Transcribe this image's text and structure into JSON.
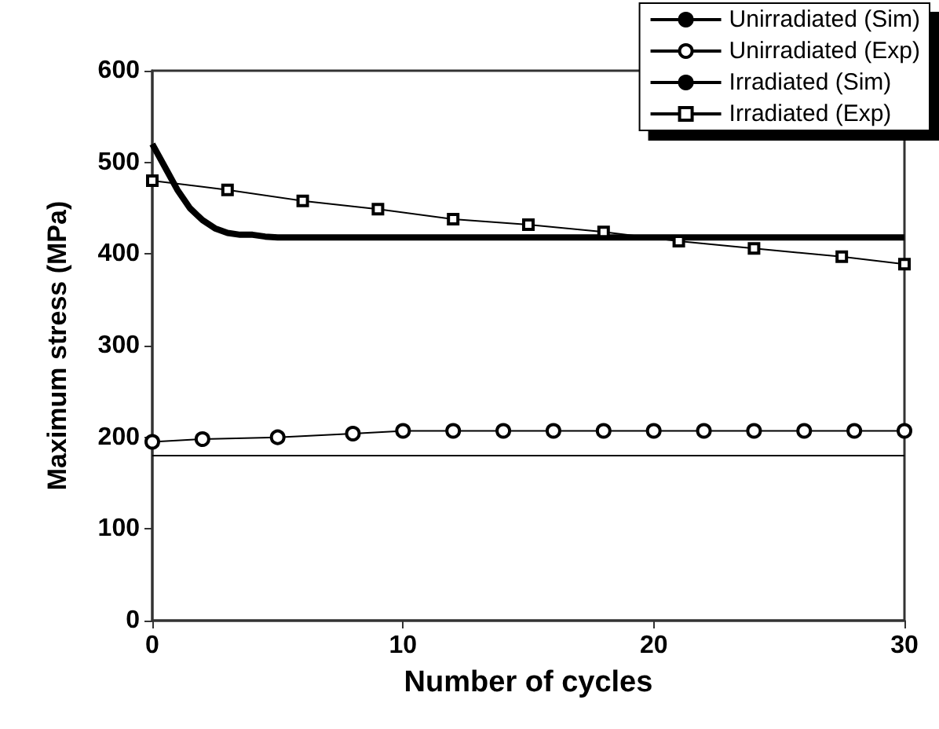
{
  "chart_data": {
    "type": "line",
    "xlabel": "Number of cycles",
    "ylabel": "Maximum stress (MPa)",
    "xlim": [
      0,
      30
    ],
    "xticks": [
      0,
      10,
      20,
      30
    ],
    "ylim": [
      0,
      600
    ],
    "yticks": [
      0,
      100,
      200,
      300,
      400,
      500,
      600
    ],
    "grid": false,
    "legend": "top right",
    "line_style": "solid",
    "series": [
      {
        "name": "Unirradiated (Sim)",
        "color": "#000000",
        "marker": "none",
        "x": [
          0,
          30
        ],
        "values": [
          180,
          180
        ]
      },
      {
        "name": "Unirradiated (Exp)",
        "color": "#000000",
        "marker": "circle",
        "x": [
          0,
          2,
          5,
          8,
          10,
          12,
          14,
          16,
          18,
          20,
          22,
          24,
          26,
          28,
          30
        ],
        "values": [
          195,
          198,
          200,
          204,
          207,
          207,
          207,
          207,
          207,
          207,
          207,
          207,
          207,
          207,
          207
        ]
      },
      {
        "name": "Irradiated (Sim)",
        "color": "#000000",
        "marker": "none",
        "x": [
          0,
          0.5,
          1,
          1.5,
          2,
          2.5,
          3,
          3.5,
          4,
          4.5,
          5,
          30
        ],
        "values": [
          520,
          495,
          470,
          450,
          437,
          428,
          423,
          421,
          421,
          419,
          418,
          418
        ]
      },
      {
        "name": "Irradiated (Exp)",
        "color": "#000000",
        "marker": "square",
        "x": [
          0,
          3,
          6,
          9,
          12,
          15,
          18,
          21,
          24,
          27.5,
          30
        ],
        "values": [
          480,
          470,
          458,
          449,
          438,
          432,
          424,
          414,
          406,
          397,
          389
        ]
      }
    ]
  }
}
